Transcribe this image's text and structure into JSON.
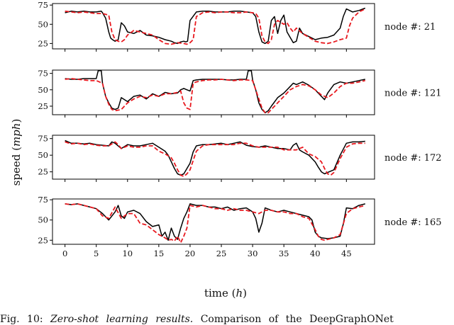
{
  "ylabel_prefix": "speed (",
  "ylabel_unit": "mph",
  "ylabel_suffix": ")",
  "xlabel_prefix": "time (",
  "xlabel_unit": "h",
  "xlabel_suffix": ")",
  "caption": {
    "prefix": "Fig. 10: ",
    "italic": "Zero-shot learning results.",
    "rest": " Comparison of the DeepGraphONet"
  },
  "colors": {
    "true": "#000000",
    "pred": "#e8191f"
  },
  "chart_data": [
    {
      "type": "line",
      "node_label": "node #: 21",
      "xlim": [
        -2,
        49.5
      ],
      "ylim": [
        18,
        77
      ],
      "yticks": [
        25,
        50,
        75
      ],
      "xticks": [
        0,
        5,
        10,
        15,
        20,
        25,
        30,
        35,
        40,
        45
      ],
      "show_xtick_labels": false,
      "series": [
        {
          "style": "solid",
          "x": [
            0,
            1,
            2,
            3,
            4,
            5,
            5.8,
            6,
            6.5,
            7,
            7.3,
            7.6,
            8,
            8.5,
            9,
            9.5,
            10,
            11,
            12,
            13,
            14,
            15,
            16,
            17,
            17.5,
            18,
            18.5,
            19,
            19.3,
            19.6,
            20,
            21,
            22,
            23,
            24,
            25,
            26,
            27,
            28,
            29,
            30,
            30.5,
            31,
            31.5,
            32,
            32.5,
            33,
            33.5,
            34,
            34.5,
            35,
            35.5,
            36,
            36.5,
            37,
            37.5,
            38,
            39,
            40,
            41,
            42,
            43,
            44,
            44.5,
            45,
            46,
            47,
            48
          ],
          "y": [
            65,
            67,
            66,
            67,
            66,
            66,
            67,
            65,
            58,
            40,
            32,
            30,
            28,
            30,
            52,
            48,
            40,
            38,
            42,
            36,
            35,
            33,
            30,
            28,
            26,
            25,
            27,
            28,
            27,
            28,
            55,
            66,
            67,
            67,
            66,
            66,
            66,
            67,
            67,
            66,
            65,
            60,
            40,
            27,
            25,
            28,
            55,
            60,
            38,
            55,
            62,
            40,
            33,
            26,
            28,
            45,
            38,
            34,
            30,
            32,
            33,
            36,
            45,
            60,
            70,
            66,
            68,
            71
          ]
        },
        {
          "style": "dashed",
          "x": [
            0,
            1,
            2,
            3,
            4,
            5,
            6,
            6.5,
            7,
            7.5,
            8,
            8.5,
            9,
            9.5,
            10,
            11,
            12,
            13,
            14,
            15,
            16,
            17,
            18,
            19,
            19.5,
            20,
            20.5,
            21,
            22,
            23,
            24,
            25,
            26,
            27,
            28,
            29,
            30,
            30.5,
            31,
            31.5,
            32,
            32.5,
            33,
            33.5,
            34,
            35,
            35.5,
            36,
            36.5,
            37,
            38,
            39,
            40,
            41,
            42,
            43,
            44,
            45,
            45.5,
            46,
            47,
            48
          ],
          "y": [
            67,
            66,
            65,
            66,
            65,
            64,
            64,
            63,
            62,
            40,
            30,
            28,
            27,
            30,
            36,
            42,
            40,
            38,
            36,
            30,
            25,
            24,
            26,
            25,
            24,
            26,
            30,
            60,
            65,
            66,
            65,
            66,
            66,
            65,
            65,
            66,
            65,
            64,
            58,
            35,
            27,
            25,
            30,
            50,
            55,
            50,
            52,
            45,
            40,
            45,
            38,
            33,
            28,
            26,
            25,
            27,
            30,
            32,
            48,
            58,
            66,
            70
          ]
        }
      ]
    },
    {
      "type": "line",
      "node_label": "node #: 121",
      "xlim": [
        -2,
        49.5
      ],
      "ylim": [
        12,
        80
      ],
      "yticks": [
        25,
        50,
        75
      ],
      "xticks": [
        0,
        5,
        10,
        15,
        20,
        25,
        30,
        35,
        40,
        45
      ],
      "show_xtick_labels": false,
      "series": [
        {
          "style": "solid",
          "x": [
            0,
            1,
            2,
            3,
            4,
            5,
            5.3,
            5.8,
            6,
            6.5,
            7,
            7.5,
            8,
            8.5,
            9,
            10,
            11,
            12,
            13,
            14,
            15,
            16,
            17,
            18,
            18.5,
            19,
            19.5,
            20,
            20.5,
            21,
            22,
            23,
            24,
            25,
            26,
            27,
            28,
            29,
            29.3,
            29.8,
            30,
            30.5,
            31,
            31.5,
            32,
            32.5,
            33,
            34,
            35,
            36,
            36.5,
            37,
            38,
            39,
            40,
            41,
            41.5,
            42,
            43,
            44,
            45,
            46,
            47,
            48
          ],
          "y": [
            67,
            66,
            66,
            67,
            67,
            67,
            79,
            79,
            60,
            40,
            30,
            22,
            20,
            22,
            38,
            32,
            40,
            42,
            36,
            44,
            40,
            46,
            44,
            45,
            50,
            52,
            50,
            48,
            64,
            65,
            66,
            66,
            66,
            66,
            65,
            65,
            66,
            66,
            79,
            79,
            65,
            50,
            30,
            20,
            15,
            18,
            25,
            38,
            45,
            55,
            60,
            58,
            62,
            57,
            50,
            40,
            35,
            45,
            58,
            62,
            60,
            62,
            64,
            66
          ]
        },
        {
          "style": "dashed",
          "x": [
            0,
            1,
            2,
            3,
            4,
            5,
            6,
            6.5,
            7,
            7.5,
            8,
            9,
            10,
            11,
            12,
            13,
            14,
            15,
            16,
            17,
            18,
            18.5,
            19,
            19.5,
            20,
            20.5,
            21,
            22,
            23,
            24,
            25,
            26,
            27,
            28,
            29,
            30,
            30.5,
            31,
            31.5,
            32,
            32.5,
            33,
            34,
            35,
            36,
            37,
            38,
            39,
            40,
            41,
            42,
            43,
            44,
            45,
            46,
            47,
            48
          ],
          "y": [
            66,
            67,
            66,
            65,
            64,
            64,
            60,
            40,
            28,
            20,
            18,
            20,
            30,
            36,
            40,
            38,
            42,
            40,
            44,
            44,
            46,
            48,
            30,
            22,
            20,
            60,
            62,
            64,
            65,
            65,
            66,
            65,
            64,
            65,
            65,
            64,
            50,
            36,
            22,
            15,
            15,
            20,
            30,
            40,
            50,
            55,
            58,
            56,
            50,
            42,
            38,
            45,
            55,
            60,
            60,
            62,
            64
          ]
        }
      ]
    },
    {
      "type": "line",
      "node_label": "node #: 172",
      "xlim": [
        -2,
        49.5
      ],
      "ylim": [
        14,
        80
      ],
      "yticks": [
        25,
        50,
        75
      ],
      "xticks": [
        0,
        5,
        10,
        15,
        20,
        25,
        30,
        35,
        40,
        45
      ],
      "show_xtick_labels": false,
      "series": [
        {
          "style": "solid",
          "x": [
            0,
            1,
            2,
            3,
            4,
            5,
            6,
            7,
            7.5,
            8,
            9,
            10,
            11,
            12,
            13,
            14,
            15,
            16,
            16.5,
            17,
            17.5,
            18,
            18.5,
            19,
            19.5,
            20,
            20.5,
            21,
            22,
            23,
            24,
            25,
            26,
            27,
            28,
            29,
            30,
            31,
            32,
            33,
            34,
            35,
            36,
            36.5,
            37,
            37.5,
            38,
            39,
            40,
            40.5,
            41,
            41.5,
            42,
            43,
            44,
            45,
            46,
            47,
            48
          ],
          "y": [
            72,
            68,
            68,
            67,
            68,
            66,
            65,
            64,
            70,
            68,
            60,
            66,
            64,
            64,
            66,
            68,
            62,
            56,
            50,
            40,
            30,
            22,
            20,
            22,
            30,
            38,
            55,
            64,
            66,
            66,
            67,
            68,
            66,
            68,
            70,
            65,
            63,
            62,
            64,
            62,
            60,
            60,
            58,
            65,
            68,
            58,
            55,
            50,
            40,
            32,
            25,
            22,
            24,
            28,
            50,
            68,
            70,
            70,
            71
          ]
        },
        {
          "style": "dashed",
          "x": [
            0,
            1,
            2,
            3,
            4,
            5,
            6,
            7,
            8,
            8.5,
            9,
            10,
            11,
            12,
            13,
            14,
            15,
            16,
            17,
            17.5,
            18,
            18.5,
            19,
            19.5,
            20,
            21,
            22,
            23,
            24,
            25,
            26,
            27,
            28,
            29,
            30,
            31,
            32,
            33,
            34,
            35,
            36,
            37,
            38,
            39,
            40,
            41,
            41.5,
            42,
            42.5,
            43,
            44,
            45,
            46,
            47,
            48
          ],
          "y": [
            70,
            67,
            68,
            66,
            67,
            65,
            64,
            64,
            70,
            66,
            60,
            64,
            62,
            62,
            64,
            64,
            56,
            52,
            46,
            38,
            28,
            20,
            18,
            22,
            28,
            56,
            64,
            66,
            66,
            66,
            66,
            66,
            68,
            68,
            64,
            62,
            62,
            62,
            62,
            58,
            58,
            58,
            62,
            52,
            48,
            40,
            30,
            22,
            20,
            24,
            45,
            62,
            67,
            68,
            68
          ]
        }
      ]
    },
    {
      "type": "line",
      "node_label": "node #: 165",
      "xlim": [
        -2,
        49.5
      ],
      "ylim": [
        20,
        76
      ],
      "yticks": [
        25,
        50,
        75
      ],
      "xticks": [
        0,
        5,
        10,
        15,
        20,
        25,
        30,
        35,
        40,
        45
      ],
      "show_xtick_labels": true,
      "series": [
        {
          "style": "solid",
          "x": [
            0,
            1,
            2,
            3,
            4,
            5,
            6,
            7,
            8,
            8.5,
            9,
            9.5,
            10,
            11,
            12,
            13,
            14,
            15,
            15.5,
            16,
            16.5,
            17,
            17.5,
            18,
            18.5,
            19,
            19.5,
            20,
            21,
            22,
            23,
            24,
            25,
            26,
            27,
            28,
            29,
            30,
            30.5,
            31,
            31.5,
            32,
            33,
            34,
            35,
            36,
            37,
            38,
            39,
            39.5,
            40,
            40.5,
            41,
            42,
            43,
            44,
            44.5,
            45,
            46,
            47,
            48
          ],
          "y": [
            70,
            69,
            70,
            68,
            66,
            64,
            58,
            50,
            60,
            68,
            55,
            52,
            60,
            62,
            58,
            48,
            42,
            44,
            30,
            35,
            25,
            40,
            30,
            26,
            40,
            52,
            60,
            70,
            68,
            68,
            66,
            66,
            64,
            66,
            62,
            64,
            65,
            60,
            52,
            35,
            46,
            65,
            62,
            60,
            62,
            60,
            58,
            56,
            54,
            50,
            35,
            30,
            28,
            27,
            28,
            30,
            45,
            65,
            64,
            68,
            70
          ]
        },
        {
          "style": "dashed",
          "x": [
            0,
            1,
            2,
            3,
            4,
            5,
            6,
            7,
            8,
            9,
            10,
            11,
            12,
            13,
            14,
            15,
            16,
            16.5,
            17,
            17.5,
            18,
            18.5,
            19,
            19.5,
            20,
            21,
            22,
            23,
            24,
            25,
            26,
            27,
            28,
            29,
            30,
            31,
            32,
            33,
            34,
            35,
            36,
            37,
            38,
            39,
            40,
            40.5,
            41,
            41.5,
            42,
            43,
            44,
            45,
            46,
            47,
            48
          ],
          "y": [
            70,
            69,
            70,
            68,
            66,
            64,
            55,
            52,
            66,
            52,
            58,
            58,
            46,
            44,
            38,
            32,
            28,
            25,
            26,
            24,
            30,
            22,
            30,
            40,
            68,
            66,
            68,
            66,
            64,
            64,
            62,
            64,
            62,
            62,
            60,
            58,
            62,
            62,
            60,
            60,
            58,
            58,
            54,
            52,
            38,
            30,
            26,
            25,
            26,
            28,
            32,
            58,
            64,
            66,
            68
          ]
        }
      ]
    }
  ]
}
